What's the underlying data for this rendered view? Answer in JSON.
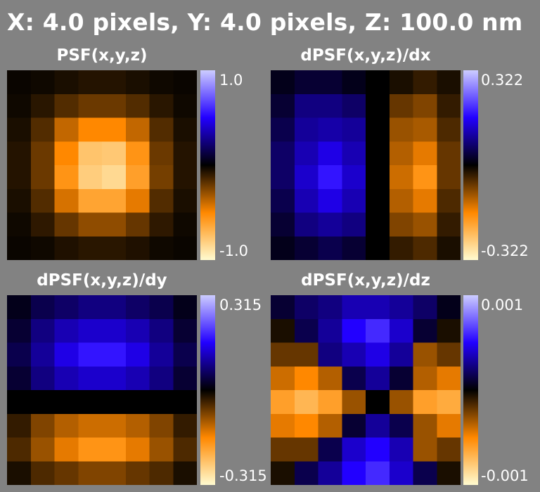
{
  "title": "X: 4.0 pixels, Y: 4.0 pixels, Z: 100.0 nm",
  "colormap": {
    "positive_end": "#ccccff",
    "positive_mid": "#2200ff",
    "zero": "#000000",
    "negative_mid": "#ff8800",
    "negative_end": "#fffbd0"
  },
  "chart_data": [
    {
      "type": "heatmap",
      "title": "PSF(x,y,z)",
      "colorbar": {
        "max": 1.0,
        "min": -1.0,
        "max_label": "1.0",
        "min_label": "-1.0"
      },
      "values": [
        [
          -0.02,
          -0.03,
          -0.05,
          -0.07,
          -0.07,
          -0.05,
          -0.03,
          -0.02
        ],
        [
          -0.03,
          -0.08,
          -0.16,
          -0.21,
          -0.21,
          -0.16,
          -0.08,
          -0.03
        ],
        [
          -0.05,
          -0.16,
          -0.38,
          -0.5,
          -0.5,
          -0.38,
          -0.16,
          -0.05
        ],
        [
          -0.07,
          -0.21,
          -0.5,
          -0.76,
          -0.78,
          -0.55,
          -0.21,
          -0.07
        ],
        [
          -0.07,
          -0.21,
          -0.55,
          -0.8,
          -0.85,
          -0.6,
          -0.23,
          -0.07
        ],
        [
          -0.05,
          -0.16,
          -0.42,
          -0.62,
          -0.62,
          -0.45,
          -0.16,
          -0.05
        ],
        [
          -0.03,
          -0.09,
          -0.2,
          -0.28,
          -0.28,
          -0.2,
          -0.09,
          -0.03
        ],
        [
          -0.02,
          -0.03,
          -0.06,
          -0.08,
          -0.08,
          -0.06,
          -0.03,
          -0.02
        ]
      ]
    },
    {
      "type": "heatmap",
      "title": "dPSF(x,y,z)/dx",
      "colorbar": {
        "max": 0.322,
        "min": -0.322,
        "max_label": "0.322",
        "min_label": "-0.322"
      },
      "values": [
        [
          0.05,
          0.1,
          0.1,
          0.05,
          0,
          -0.05,
          -0.1,
          -0.05
        ],
        [
          0.1,
          0.25,
          0.25,
          0.2,
          0,
          -0.2,
          -0.25,
          -0.1
        ],
        [
          0.15,
          0.3,
          0.33,
          0.3,
          0,
          -0.3,
          -0.33,
          -0.15
        ],
        [
          0.2,
          0.35,
          0.45,
          0.35,
          0,
          -0.35,
          -0.45,
          -0.2
        ],
        [
          0.2,
          0.4,
          0.55,
          0.4,
          0,
          -0.4,
          -0.55,
          -0.2
        ],
        [
          0.15,
          0.35,
          0.45,
          0.35,
          0,
          -0.35,
          -0.45,
          -0.15
        ],
        [
          0.1,
          0.25,
          0.3,
          0.25,
          0,
          -0.25,
          -0.3,
          -0.1
        ],
        [
          0.05,
          0.1,
          0.15,
          0.1,
          0,
          -0.1,
          -0.15,
          -0.05
        ]
      ]
    },
    {
      "type": "heatmap",
      "title": "dPSF(x,y,z)/dy",
      "colorbar": {
        "max": 0.315,
        "min": -0.315,
        "max_label": "0.315",
        "min_label": "-0.315"
      },
      "values": [
        [
          0.05,
          0.15,
          0.2,
          0.25,
          0.25,
          0.2,
          0.15,
          0.05
        ],
        [
          0.1,
          0.25,
          0.35,
          0.4,
          0.4,
          0.35,
          0.25,
          0.1
        ],
        [
          0.15,
          0.3,
          0.45,
          0.55,
          0.55,
          0.45,
          0.3,
          0.15
        ],
        [
          0.1,
          0.25,
          0.35,
          0.4,
          0.4,
          0.35,
          0.25,
          0.1
        ],
        [
          0,
          0,
          0,
          0,
          0,
          0,
          0,
          0
        ],
        [
          -0.1,
          -0.25,
          -0.35,
          -0.4,
          -0.4,
          -0.35,
          -0.25,
          -0.1
        ],
        [
          -0.15,
          -0.3,
          -0.45,
          -0.55,
          -0.55,
          -0.45,
          -0.3,
          -0.15
        ],
        [
          -0.05,
          -0.15,
          -0.2,
          -0.25,
          -0.25,
          -0.2,
          -0.15,
          -0.05
        ]
      ]
    },
    {
      "type": "heatmap",
      "title": "dPSF(x,y,z)/dz",
      "colorbar": {
        "max": 0.001,
        "min": -0.001,
        "max_label": "0.001",
        "min_label": "-0.001"
      },
      "values": [
        [
          0.1,
          0.2,
          0.25,
          0.35,
          0.35,
          0.3,
          0.2,
          0.05
        ],
        [
          -0.05,
          0.15,
          0.3,
          0.5,
          0.6,
          0.4,
          0.1,
          -0.05
        ],
        [
          -0.2,
          -0.2,
          0.25,
          0.35,
          0.45,
          0.3,
          -0.3,
          -0.2
        ],
        [
          -0.4,
          -0.5,
          -0.35,
          0.15,
          0.3,
          0.1,
          -0.35,
          -0.45
        ],
        [
          -0.6,
          -0.7,
          -0.6,
          -0.3,
          0,
          -0.3,
          -0.6,
          -0.65
        ],
        [
          -0.45,
          -0.5,
          -0.35,
          0.1,
          0.3,
          0.15,
          -0.3,
          -0.45
        ],
        [
          -0.2,
          -0.2,
          0.15,
          0.4,
          0.5,
          0.35,
          -0.3,
          -0.2
        ],
        [
          -0.05,
          0.15,
          0.3,
          0.5,
          0.6,
          0.4,
          0.15,
          -0.05
        ]
      ]
    }
  ]
}
